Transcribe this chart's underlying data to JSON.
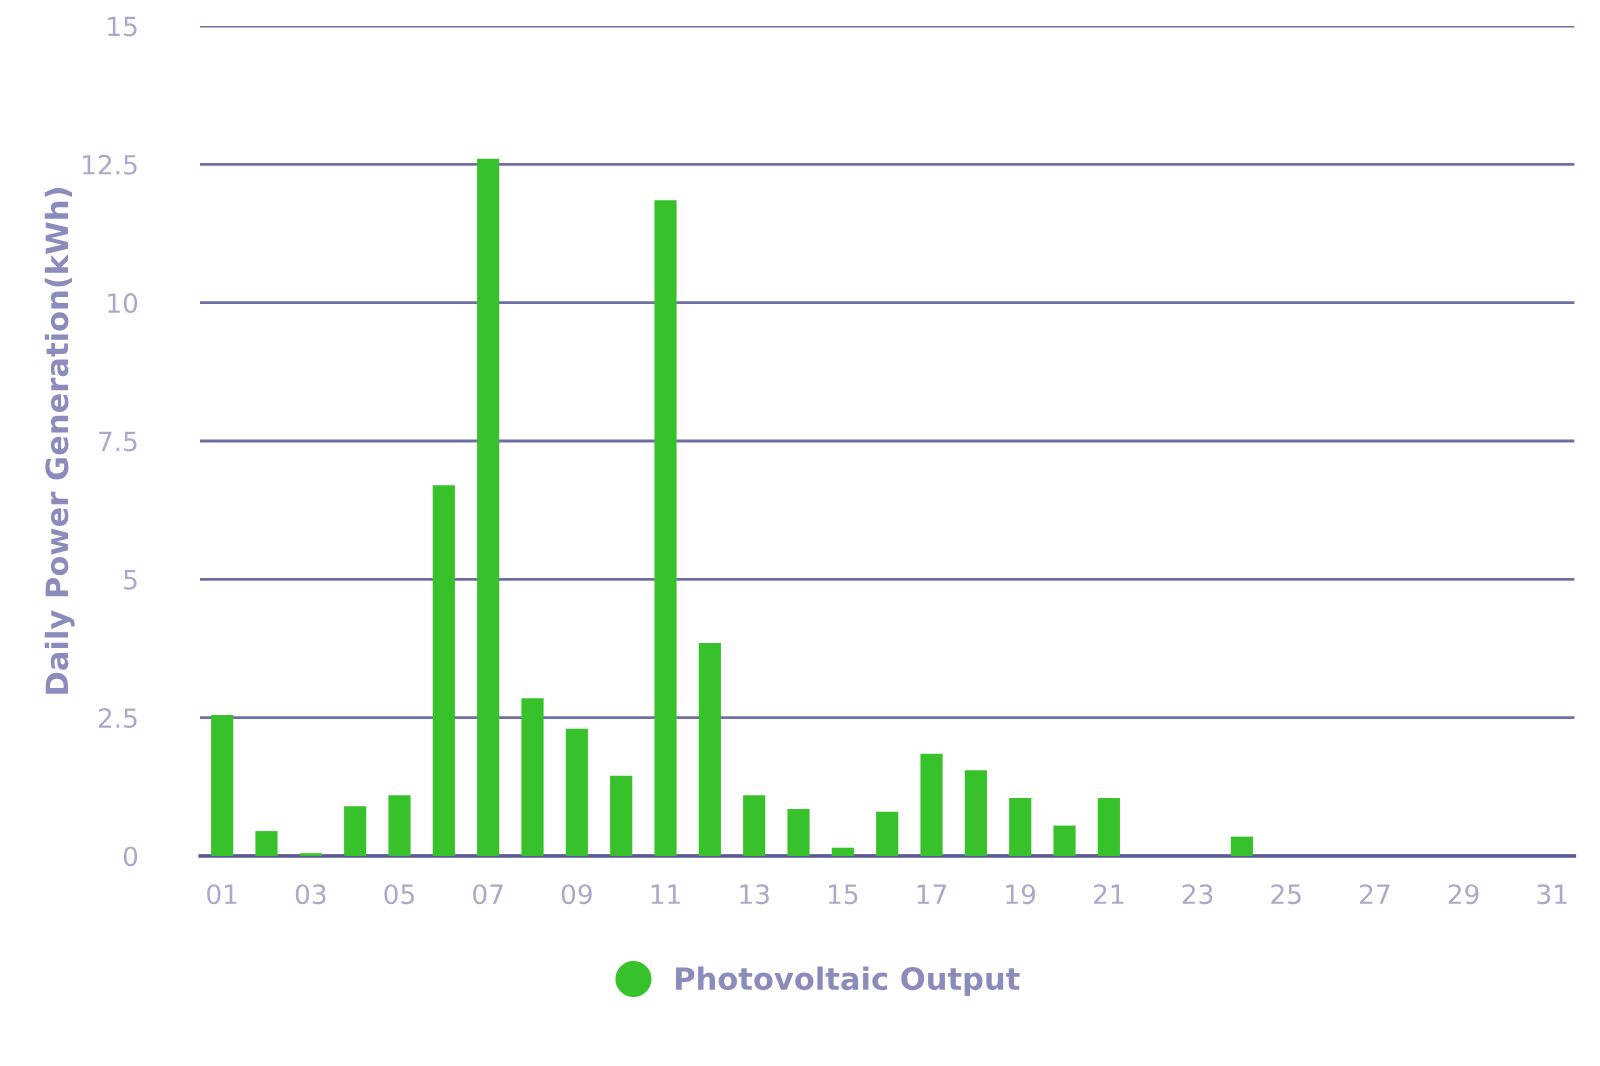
{
  "chart_data": {
    "type": "bar",
    "ylabel": "Daily Power Generation(kWh)",
    "categories": [
      "01",
      null,
      "03",
      null,
      "05",
      null,
      "07",
      null,
      "09",
      null,
      "11",
      null,
      "13",
      null,
      "15",
      null,
      "17",
      null,
      "19",
      null,
      "21",
      null,
      "23",
      null,
      "25",
      null,
      "27",
      null,
      "29",
      null,
      "31"
    ],
    "series": [
      {
        "name": "Photovoltaic Output",
        "color": "#37c22b",
        "values": [
          2.55,
          0.45,
          0.05,
          0.9,
          1.1,
          6.7,
          12.6,
          2.85,
          2.3,
          1.45,
          11.85,
          3.85,
          1.1,
          0.85,
          0.15,
          0.8,
          1.85,
          1.55,
          1.05,
          0.55,
          1.05,
          null,
          null,
          0.35,
          null,
          null,
          null,
          null,
          null,
          null,
          null
        ]
      }
    ],
    "ylim": [
      0,
      15
    ],
    "yticks": [
      0,
      2.5,
      5,
      7.5,
      10,
      12.5,
      15
    ],
    "grid": "y",
    "legend": "bottom"
  }
}
